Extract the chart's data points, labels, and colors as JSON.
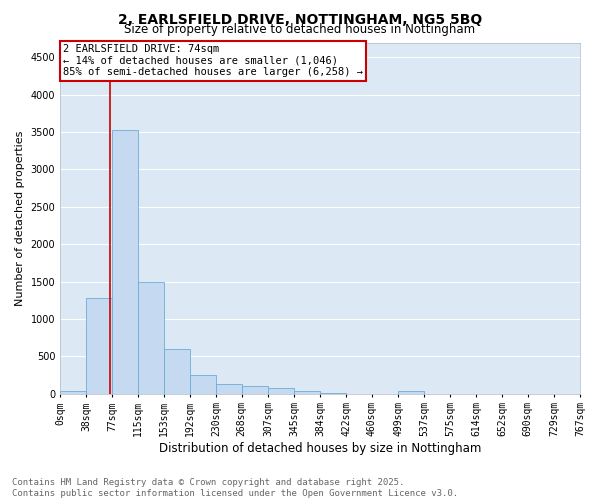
{
  "title": "2, EARLSFIELD DRIVE, NOTTINGHAM, NG5 5BQ",
  "subtitle": "Size of property relative to detached houses in Nottingham",
  "xlabel": "Distribution of detached houses by size in Nottingham",
  "ylabel": "Number of detached properties",
  "bin_labels": [
    "0sqm",
    "38sqm",
    "77sqm",
    "115sqm",
    "153sqm",
    "192sqm",
    "230sqm",
    "268sqm",
    "307sqm",
    "345sqm",
    "384sqm",
    "422sqm",
    "460sqm",
    "499sqm",
    "537sqm",
    "575sqm",
    "614sqm",
    "652sqm",
    "690sqm",
    "729sqm",
    "767sqm"
  ],
  "bar_heights": [
    30,
    1280,
    3530,
    1490,
    600,
    250,
    130,
    100,
    70,
    30,
    5,
    0,
    0,
    40,
    0,
    0,
    0,
    0,
    0,
    0
  ],
  "bin_edges": [
    0,
    38,
    77,
    115,
    153,
    192,
    230,
    268,
    307,
    345,
    384,
    422,
    460,
    499,
    537,
    575,
    614,
    652,
    690,
    729,
    767
  ],
  "bar_color": "#c5d9f0",
  "bar_edge_color": "#6baed6",
  "property_size": 74,
  "red_line_color": "#cc0000",
  "annotation_line1": "2 EARLSFIELD DRIVE: 74sqm",
  "annotation_line2": "← 14% of detached houses are smaller (1,046)",
  "annotation_line3": "85% of semi-detached houses are larger (6,258) →",
  "annotation_box_color": "#ffffff",
  "annotation_box_edge_color": "#cc0000",
  "ylim_max": 4700,
  "yticks": [
    0,
    500,
    1000,
    1500,
    2000,
    2500,
    3000,
    3500,
    4000,
    4500
  ],
  "plot_bg_color": "#dce9f5",
  "fig_bg_color": "#ffffff",
  "grid_color": "#ffffff",
  "footer_line1": "Contains HM Land Registry data © Crown copyright and database right 2025.",
  "footer_line2": "Contains public sector information licensed under the Open Government Licence v3.0.",
  "footer_color": "#666666",
  "title_fontsize": 10,
  "subtitle_fontsize": 8.5,
  "xlabel_fontsize": 8.5,
  "ylabel_fontsize": 8,
  "tick_fontsize": 7,
  "annotation_fontsize": 7.5,
  "footer_fontsize": 6.5
}
